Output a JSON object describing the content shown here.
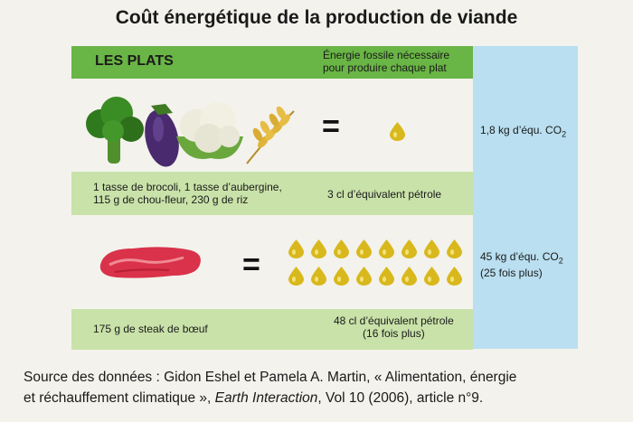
{
  "title": "Coût énergétique de la production de viande",
  "header": {
    "left": "LES PLATS",
    "right_line1": "Énergie fossile nécessaire",
    "right_line2": "pour produire chaque plat"
  },
  "rows": [
    {
      "dish_line1": "1 tasse de brocoli, 1 tasse d’aubergine,",
      "dish_line2": "115 g de chou-fleur, 230 g de riz",
      "energy": "3 cl d’équivalent pétrole",
      "co2": "1,8 kg d’équ. CO",
      "co2_sub": "2",
      "drops": 1
    },
    {
      "dish_line1": "175 g de steak de bœuf",
      "energy_line1": "48 cl d’équivalent pétrole",
      "energy_line2": "(16 fois plus)",
      "co2": "45 kg d’équ. CO",
      "co2_sub": "2",
      "co2_line2": "(25 fois plus)",
      "drops": 16
    }
  ],
  "source": {
    "line1": "Source des données : Gidon Eshel et Pamela A. Martin, « Alimentation, énergie",
    "line2_pre": "et réchauffement climatique », ",
    "line2_journal": "Earth Interaction",
    "line2_post": ", Vol 10 (2006), article n°9."
  },
  "colors": {
    "header_green": "#69b545",
    "band_green": "#c9e2a9",
    "co2_blue": "#b9dff0",
    "drop_yellow": "#d8b81c"
  },
  "icons": [
    "broccoli-icon",
    "eggplant-icon",
    "cauliflower-icon",
    "rice-icon",
    "steak-icon",
    "oil-drop-icon"
  ]
}
